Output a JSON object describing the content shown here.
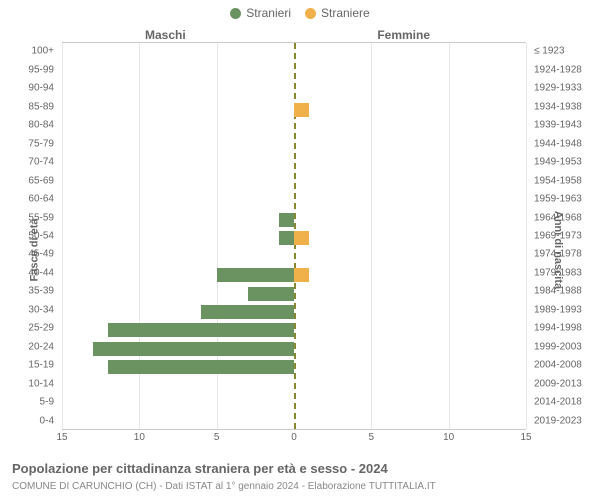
{
  "legend": {
    "male": {
      "label": "Stranieri",
      "color": "#6b9362"
    },
    "female": {
      "label": "Straniere",
      "color": "#f0b04a"
    }
  },
  "header": {
    "male": "Maschi",
    "female": "Femmine"
  },
  "axis_left_title": "Fasce di età",
  "axis_right_title": "Anni di nascita",
  "x_axis": {
    "max": 15,
    "ticks_left": [
      15,
      10,
      5,
      0
    ],
    "ticks_right": [
      5,
      10,
      15
    ]
  },
  "chart": {
    "type": "population-pyramid",
    "bar_height_ratio": 0.76,
    "background_color": "#ffffff",
    "grid_color": "#e6e6e6",
    "center_line_color": "#888833",
    "rows": [
      {
        "age": "100+",
        "birth": "≤ 1923",
        "m": 0,
        "f": 0
      },
      {
        "age": "95-99",
        "birth": "1924-1928",
        "m": 0,
        "f": 0
      },
      {
        "age": "90-94",
        "birth": "1929-1933",
        "m": 0,
        "f": 0
      },
      {
        "age": "85-89",
        "birth": "1934-1938",
        "m": 0,
        "f": 1
      },
      {
        "age": "80-84",
        "birth": "1939-1943",
        "m": 0,
        "f": 0
      },
      {
        "age": "75-79",
        "birth": "1944-1948",
        "m": 0,
        "f": 0
      },
      {
        "age": "70-74",
        "birth": "1949-1953",
        "m": 0,
        "f": 0
      },
      {
        "age": "65-69",
        "birth": "1954-1958",
        "m": 0,
        "f": 0
      },
      {
        "age": "60-64",
        "birth": "1959-1963",
        "m": 0,
        "f": 0
      },
      {
        "age": "55-59",
        "birth": "1964-1968",
        "m": 1,
        "f": 0
      },
      {
        "age": "50-54",
        "birth": "1969-1973",
        "m": 1,
        "f": 1
      },
      {
        "age": "45-49",
        "birth": "1974-1978",
        "m": 0,
        "f": 0
      },
      {
        "age": "40-44",
        "birth": "1979-1983",
        "m": 5,
        "f": 1
      },
      {
        "age": "35-39",
        "birth": "1984-1988",
        "m": 3,
        "f": 0
      },
      {
        "age": "30-34",
        "birth": "1989-1993",
        "m": 6,
        "f": 0
      },
      {
        "age": "25-29",
        "birth": "1994-1998",
        "m": 12,
        "f": 0
      },
      {
        "age": "20-24",
        "birth": "1999-2003",
        "m": 13,
        "f": 0
      },
      {
        "age": "15-19",
        "birth": "2004-2008",
        "m": 12,
        "f": 0
      },
      {
        "age": "10-14",
        "birth": "2009-2013",
        "m": 0,
        "f": 0
      },
      {
        "age": "5-9",
        "birth": "2014-2018",
        "m": 0,
        "f": 0
      },
      {
        "age": "0-4",
        "birth": "2019-2023",
        "m": 0,
        "f": 0
      }
    ]
  },
  "footer": {
    "title": "Popolazione per cittadinanza straniera per età e sesso - 2024",
    "subtitle": "COMUNE DI CARUNCHIO (CH) - Dati ISTAT al 1° gennaio 2024 - Elaborazione TUTTITALIA.IT"
  },
  "colors": {
    "text": "#666666",
    "subtext": "#888888"
  }
}
